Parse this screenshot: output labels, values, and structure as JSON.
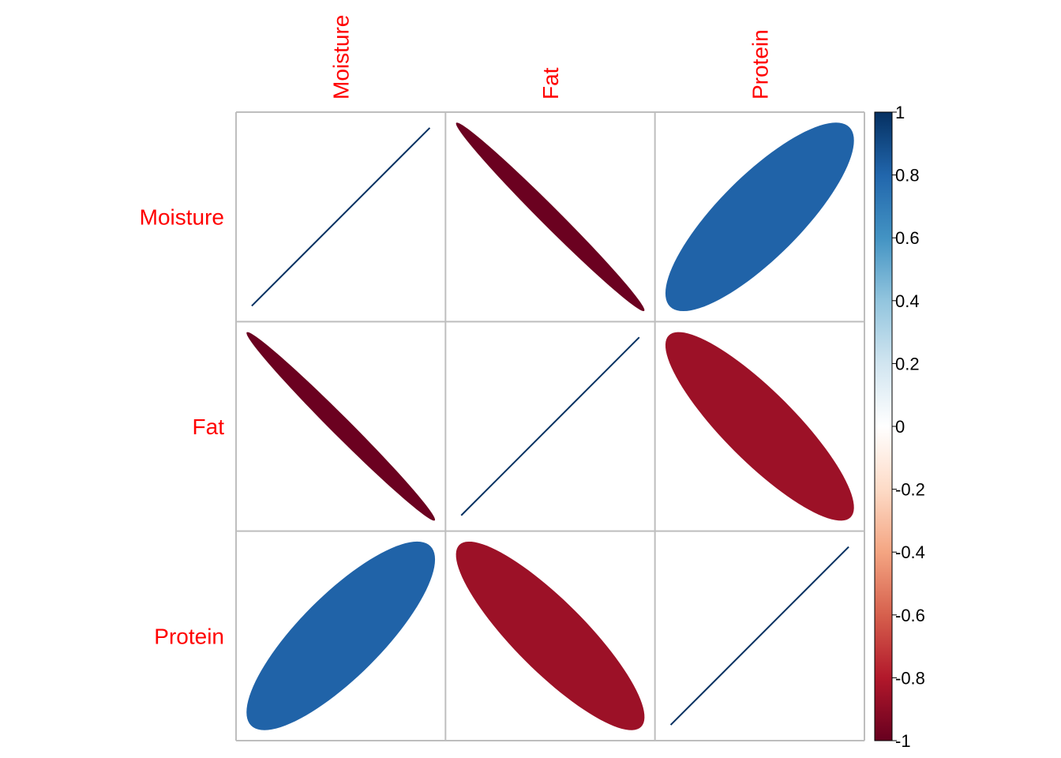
{
  "chart_data": {
    "type": "heatmap",
    "method": "ellipse",
    "variables": [
      "Moisture",
      "Fat",
      "Protein"
    ],
    "matrix": [
      [
        1.0,
        -0.99,
        0.81
      ],
      [
        -0.99,
        1.0,
        -0.86
      ],
      [
        0.81,
        -0.86,
        1.0
      ]
    ],
    "label_color": "#FF0000",
    "grid_color": "#BEBEBE",
    "colorbar": {
      "range": [
        -1,
        1
      ],
      "tick_labels": [
        "1",
        "0.8",
        "0.6",
        "0.4",
        "0.2",
        "0",
        "-0.2",
        "-0.4",
        "-0.6",
        "-0.8",
        "-1"
      ],
      "tick_values": [
        1,
        0.8,
        0.6,
        0.4,
        0.2,
        0,
        -0.2,
        -0.4,
        -0.6,
        -0.8,
        -1
      ],
      "colors": [
        "#67001F",
        "#B2182B",
        "#D6604D",
        "#F4A582",
        "#FDDBC7",
        "#FFFFFF",
        "#D1E5F0",
        "#92C5DE",
        "#4393C3",
        "#2166AC",
        "#053061"
      ]
    }
  }
}
